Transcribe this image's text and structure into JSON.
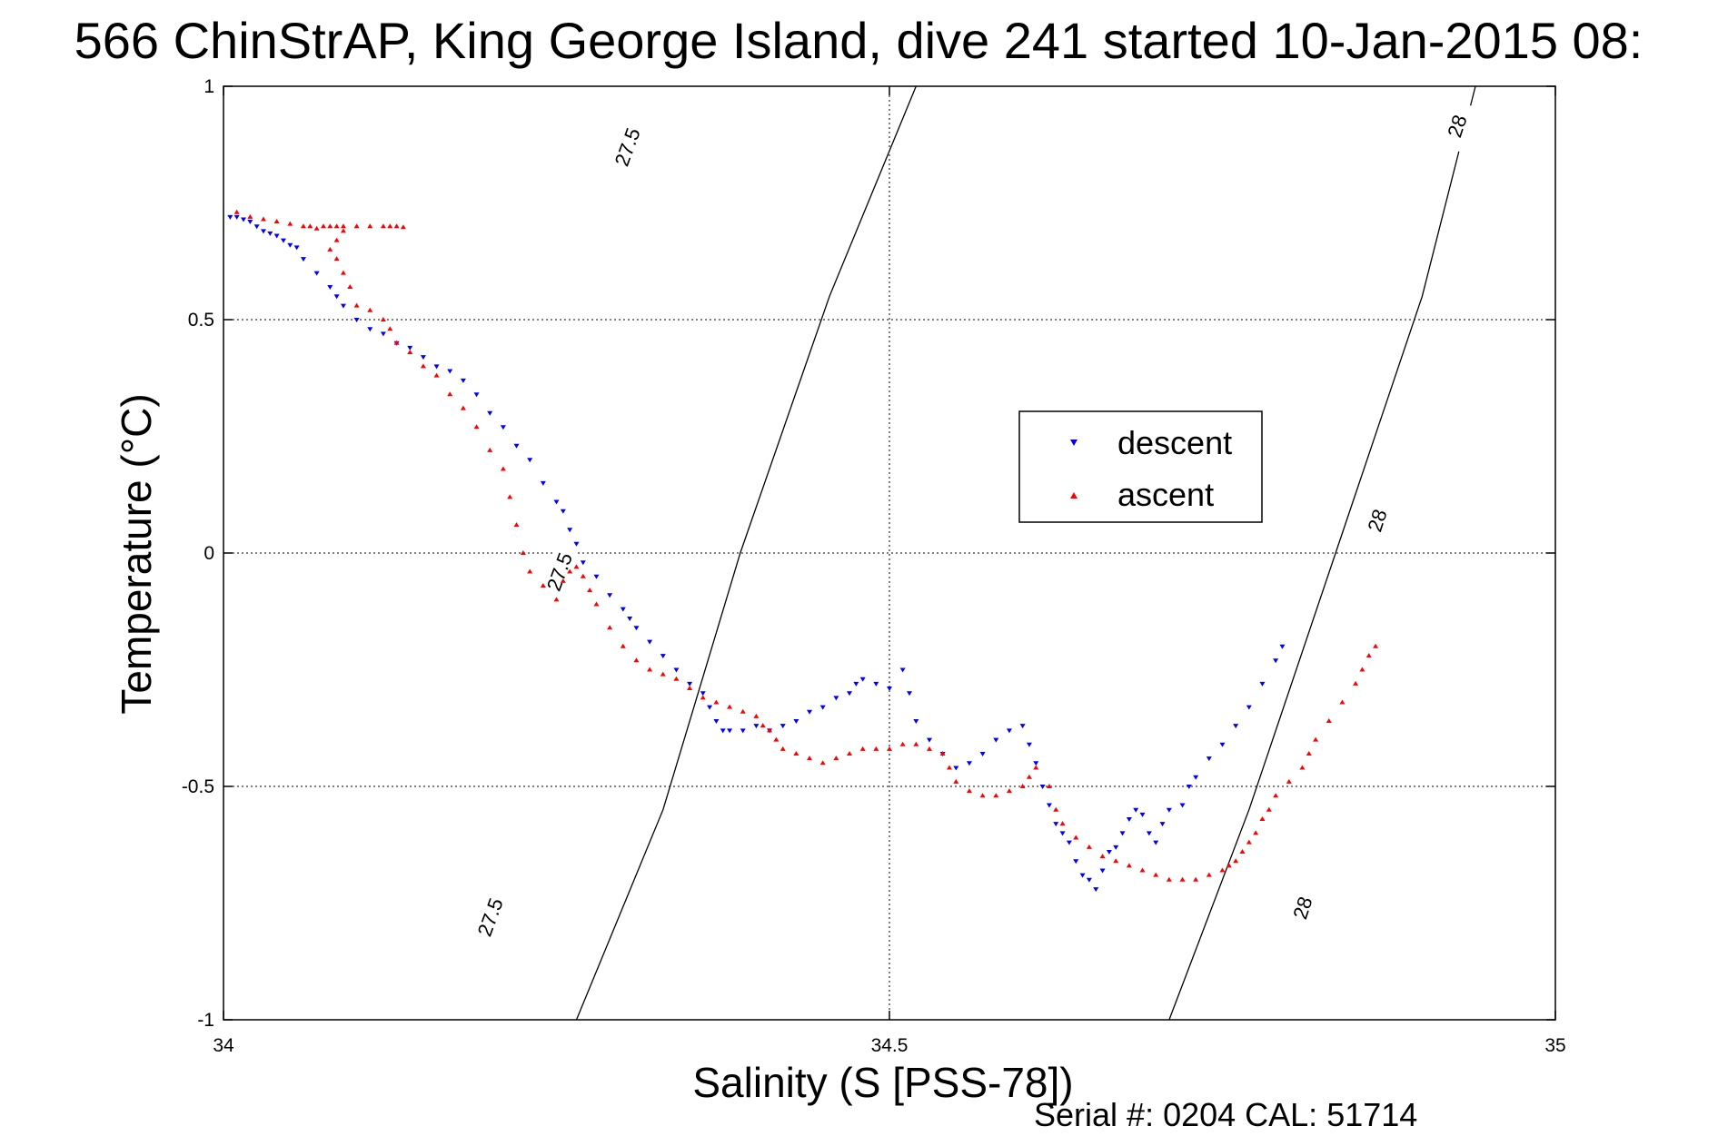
{
  "chart_data": {
    "type": "scatter",
    "title": "566 ChinStrAP, King George Island, dive 241 started 10-Jan-2015 08:",
    "xlabel": "Salinity (S [PSS-78])",
    "ylabel": "Temperature (°C)",
    "xlim": [
      34,
      35
    ],
    "ylim": [
      -1,
      1
    ],
    "xticks": [
      34,
      34.5,
      35
    ],
    "xtick_labels": [
      "34",
      "34.5",
      "35"
    ],
    "yticks": [
      1,
      0.5,
      0,
      -0.5,
      -1
    ],
    "ytick_labels": [
      "1",
      "0.5",
      "0",
      "-0.5",
      "-1"
    ],
    "grid": true,
    "legend_position": "center-right",
    "footer": "Serial #: 0204  CAL: 51714",
    "contours": [
      {
        "label": "27.5",
        "points": [
          [
            34.265,
            -1.0
          ],
          [
            34.33,
            -0.55
          ],
          [
            34.388,
            0.0
          ],
          [
            34.455,
            0.55
          ],
          [
            34.52,
            1.0
          ]
        ],
        "label_positions": [
          [
            34.2,
            -0.78
          ],
          [
            34.252,
            -0.04
          ],
          [
            34.303,
            0.87
          ]
        ]
      },
      {
        "label": "28",
        "points": [
          [
            34.71,
            -1.0
          ],
          [
            34.77,
            -0.55
          ],
          [
            34.835,
            0.0
          ],
          [
            34.9,
            0.55
          ],
          [
            34.94,
            1.0
          ]
        ],
        "label_positions": [
          [
            34.81,
            -0.76
          ],
          [
            34.866,
            0.07
          ],
          [
            34.926,
            0.915
          ]
        ]
      }
    ],
    "series": [
      {
        "name": "descent",
        "color": "#0000ff",
        "marker": "triangle-down",
        "points": [
          [
            34.005,
            0.72
          ],
          [
            34.01,
            0.72
          ],
          [
            34.015,
            0.715
          ],
          [
            34.02,
            0.71
          ],
          [
            34.025,
            0.7
          ],
          [
            34.03,
            0.69
          ],
          [
            34.035,
            0.685
          ],
          [
            34.04,
            0.68
          ],
          [
            34.045,
            0.67
          ],
          [
            34.05,
            0.66
          ],
          [
            34.055,
            0.655
          ],
          [
            34.06,
            0.63
          ],
          [
            34.07,
            0.6
          ],
          [
            34.08,
            0.57
          ],
          [
            34.085,
            0.55
          ],
          [
            34.09,
            0.53
          ],
          [
            34.1,
            0.5
          ],
          [
            34.11,
            0.48
          ],
          [
            34.12,
            0.47
          ],
          [
            34.13,
            0.45
          ],
          [
            34.14,
            0.44
          ],
          [
            34.15,
            0.42
          ],
          [
            34.16,
            0.4
          ],
          [
            34.17,
            0.39
          ],
          [
            34.18,
            0.37
          ],
          [
            34.19,
            0.34
          ],
          [
            34.2,
            0.3
          ],
          [
            34.21,
            0.27
          ],
          [
            34.22,
            0.23
          ],
          [
            34.23,
            0.2
          ],
          [
            34.24,
            0.15
          ],
          [
            34.25,
            0.11
          ],
          [
            34.255,
            0.09
          ],
          [
            34.26,
            0.05
          ],
          [
            34.265,
            0.02
          ],
          [
            34.27,
            -0.02
          ],
          [
            34.28,
            -0.05
          ],
          [
            34.29,
            -0.09
          ],
          [
            34.3,
            -0.12
          ],
          [
            34.305,
            -0.14
          ],
          [
            34.31,
            -0.16
          ],
          [
            34.32,
            -0.19
          ],
          [
            34.33,
            -0.22
          ],
          [
            34.34,
            -0.25
          ],
          [
            34.35,
            -0.28
          ],
          [
            34.36,
            -0.3
          ],
          [
            34.365,
            -0.33
          ],
          [
            34.37,
            -0.36
          ],
          [
            34.375,
            -0.38
          ],
          [
            34.38,
            -0.38
          ],
          [
            34.39,
            -0.38
          ],
          [
            34.4,
            -0.37
          ],
          [
            34.41,
            -0.38
          ],
          [
            34.42,
            -0.37
          ],
          [
            34.43,
            -0.36
          ],
          [
            34.44,
            -0.34
          ],
          [
            34.45,
            -0.33
          ],
          [
            34.46,
            -0.31
          ],
          [
            34.47,
            -0.3
          ],
          [
            34.475,
            -0.28
          ],
          [
            34.48,
            -0.27
          ],
          [
            34.49,
            -0.28
          ],
          [
            34.5,
            -0.29
          ],
          [
            34.51,
            -0.25
          ],
          [
            34.515,
            -0.3
          ],
          [
            34.52,
            -0.36
          ],
          [
            34.53,
            -0.4
          ],
          [
            34.54,
            -0.43
          ],
          [
            34.55,
            -0.46
          ],
          [
            34.56,
            -0.45
          ],
          [
            34.57,
            -0.43
          ],
          [
            34.58,
            -0.4
          ],
          [
            34.59,
            -0.38
          ],
          [
            34.6,
            -0.37
          ],
          [
            34.605,
            -0.41
          ],
          [
            34.61,
            -0.45
          ],
          [
            34.615,
            -0.5
          ],
          [
            34.62,
            -0.54
          ],
          [
            34.625,
            -0.58
          ],
          [
            34.63,
            -0.6
          ],
          [
            34.635,
            -0.62
          ],
          [
            34.64,
            -0.66
          ],
          [
            34.645,
            -0.69
          ],
          [
            34.65,
            -0.7
          ],
          [
            34.655,
            -0.72
          ],
          [
            34.66,
            -0.68
          ],
          [
            34.665,
            -0.64
          ],
          [
            34.67,
            -0.63
          ],
          [
            34.675,
            -0.6
          ],
          [
            34.68,
            -0.57
          ],
          [
            34.685,
            -0.55
          ],
          [
            34.69,
            -0.56
          ],
          [
            34.695,
            -0.6
          ],
          [
            34.7,
            -0.62
          ],
          [
            34.705,
            -0.58
          ],
          [
            34.71,
            -0.55
          ],
          [
            34.72,
            -0.54
          ],
          [
            34.725,
            -0.5
          ],
          [
            34.73,
            -0.48
          ],
          [
            34.74,
            -0.44
          ],
          [
            34.75,
            -0.41
          ],
          [
            34.76,
            -0.37
          ],
          [
            34.77,
            -0.33
          ],
          [
            34.78,
            -0.28
          ],
          [
            34.79,
            -0.23
          ],
          [
            34.795,
            -0.2
          ]
        ]
      },
      {
        "name": "ascent",
        "color": "#ff0000",
        "marker": "triangle-up",
        "points": [
          [
            34.01,
            0.73
          ],
          [
            34.02,
            0.72
          ],
          [
            34.03,
            0.715
          ],
          [
            34.04,
            0.71
          ],
          [
            34.05,
            0.705
          ],
          [
            34.06,
            0.7
          ],
          [
            34.065,
            0.7
          ],
          [
            34.07,
            0.695
          ],
          [
            34.075,
            0.7
          ],
          [
            34.08,
            0.7
          ],
          [
            34.085,
            0.7
          ],
          [
            34.09,
            0.7
          ],
          [
            34.1,
            0.7
          ],
          [
            34.11,
            0.7
          ],
          [
            34.12,
            0.7
          ],
          [
            34.125,
            0.7
          ],
          [
            34.13,
            0.7
          ],
          [
            34.135,
            0.698
          ],
          [
            34.09,
            0.69
          ],
          [
            34.085,
            0.67
          ],
          [
            34.08,
            0.65
          ],
          [
            34.085,
            0.63
          ],
          [
            34.09,
            0.6
          ],
          [
            34.095,
            0.57
          ],
          [
            34.1,
            0.53
          ],
          [
            34.11,
            0.52
          ],
          [
            34.12,
            0.5
          ],
          [
            34.125,
            0.48
          ],
          [
            34.13,
            0.45
          ],
          [
            34.14,
            0.43
          ],
          [
            34.15,
            0.4
          ],
          [
            34.16,
            0.38
          ],
          [
            34.17,
            0.34
          ],
          [
            34.18,
            0.31
          ],
          [
            34.19,
            0.27
          ],
          [
            34.2,
            0.22
          ],
          [
            34.21,
            0.18
          ],
          [
            34.215,
            0.12
          ],
          [
            34.22,
            0.06
          ],
          [
            34.225,
            0.0
          ],
          [
            34.23,
            -0.04
          ],
          [
            34.24,
            -0.07
          ],
          [
            34.25,
            -0.1
          ],
          [
            34.255,
            -0.06
          ],
          [
            34.26,
            -0.04
          ],
          [
            34.265,
            -0.03
          ],
          [
            34.27,
            -0.05
          ],
          [
            34.275,
            -0.08
          ],
          [
            34.28,
            -0.11
          ],
          [
            34.29,
            -0.16
          ],
          [
            34.3,
            -0.2
          ],
          [
            34.31,
            -0.23
          ],
          [
            34.32,
            -0.25
          ],
          [
            34.33,
            -0.26
          ],
          [
            34.34,
            -0.27
          ],
          [
            34.35,
            -0.29
          ],
          [
            34.36,
            -0.31
          ],
          [
            34.37,
            -0.32
          ],
          [
            34.38,
            -0.33
          ],
          [
            34.39,
            -0.34
          ],
          [
            34.4,
            -0.35
          ],
          [
            34.405,
            -0.37
          ],
          [
            34.41,
            -0.38
          ],
          [
            34.415,
            -0.4
          ],
          [
            34.42,
            -0.42
          ],
          [
            34.43,
            -0.43
          ],
          [
            34.44,
            -0.44
          ],
          [
            34.45,
            -0.45
          ],
          [
            34.46,
            -0.44
          ],
          [
            34.47,
            -0.43
          ],
          [
            34.48,
            -0.42
          ],
          [
            34.49,
            -0.42
          ],
          [
            34.5,
            -0.42
          ],
          [
            34.51,
            -0.41
          ],
          [
            34.52,
            -0.41
          ],
          [
            34.53,
            -0.42
          ],
          [
            34.54,
            -0.43
          ],
          [
            34.545,
            -0.46
          ],
          [
            34.55,
            -0.49
          ],
          [
            34.56,
            -0.51
          ],
          [
            34.57,
            -0.52
          ],
          [
            34.58,
            -0.52
          ],
          [
            34.59,
            -0.51
          ],
          [
            34.6,
            -0.5
          ],
          [
            34.605,
            -0.48
          ],
          [
            34.61,
            -0.46
          ],
          [
            34.62,
            -0.5
          ],
          [
            34.625,
            -0.55
          ],
          [
            34.63,
            -0.58
          ],
          [
            34.64,
            -0.61
          ],
          [
            34.65,
            -0.63
          ],
          [
            34.66,
            -0.65
          ],
          [
            34.67,
            -0.66
          ],
          [
            34.68,
            -0.67
          ],
          [
            34.69,
            -0.68
          ],
          [
            34.7,
            -0.69
          ],
          [
            34.71,
            -0.7
          ],
          [
            34.72,
            -0.7
          ],
          [
            34.73,
            -0.7
          ],
          [
            34.74,
            -0.69
          ],
          [
            34.75,
            -0.68
          ],
          [
            34.755,
            -0.67
          ],
          [
            34.76,
            -0.66
          ],
          [
            34.765,
            -0.64
          ],
          [
            34.77,
            -0.62
          ],
          [
            34.775,
            -0.6
          ],
          [
            34.78,
            -0.57
          ],
          [
            34.785,
            -0.55
          ],
          [
            34.79,
            -0.52
          ],
          [
            34.8,
            -0.49
          ],
          [
            34.81,
            -0.46
          ],
          [
            34.815,
            -0.43
          ],
          [
            34.82,
            -0.4
          ],
          [
            34.83,
            -0.36
          ],
          [
            34.84,
            -0.32
          ],
          [
            34.85,
            -0.28
          ],
          [
            34.855,
            -0.25
          ],
          [
            34.86,
            -0.22
          ],
          [
            34.865,
            -0.2
          ]
        ]
      }
    ]
  }
}
